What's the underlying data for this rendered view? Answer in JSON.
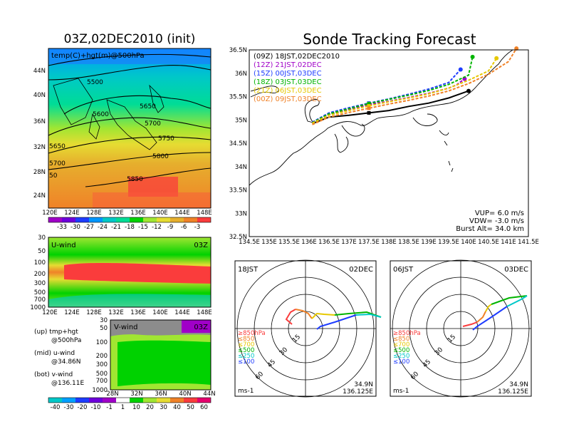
{
  "left": {
    "title": "03Z,02DEC2010 (init)",
    "map_label": "temp(C)+hgt(m)@500hPa",
    "lat_ticks": [
      "44N",
      "40N",
      "36N",
      "32N",
      "28N",
      "24N"
    ],
    "lon_ticks": [
      "120E",
      "124E",
      "128E",
      "132E",
      "136E",
      "140E",
      "144E",
      "148E"
    ],
    "contour_labels": [
      "5500",
      "5600",
      "5650",
      "5700",
      "5750",
      "5800",
      "5850",
      "5700",
      "5650",
      "5700",
      "50"
    ],
    "colorbar_labels": [
      "-33",
      "-30",
      "-27",
      "-24",
      "-21",
      "-18",
      "-15",
      "-12",
      "-9",
      "-6",
      "-3"
    ],
    "colorbar_colors": [
      "#a000c8",
      "#6e00dc",
      "#1e3cff",
      "#0096ff",
      "#00c8c8",
      "#00dc96",
      "#00d200",
      "#a0e632",
      "#e6dc32",
      "#e6af2d",
      "#f08228",
      "#fa3c3c"
    ]
  },
  "uwind": {
    "label": "U-wind",
    "time": "03Z",
    "p_ticks": [
      "30",
      "50",
      "100",
      "200",
      "300",
      "500",
      "700",
      "1000"
    ],
    "lon_ticks": [
      "120E",
      "124E",
      "128E",
      "132E",
      "136E",
      "140E",
      "144E",
      "148E"
    ]
  },
  "vwind": {
    "label": "V-wind",
    "time": "03Z",
    "p_ticks": [
      "30",
      "50",
      "100",
      "200",
      "300",
      "500",
      "700",
      "1000"
    ],
    "lat_ticks": [
      "28N",
      "32N",
      "36N",
      "40N",
      "44N"
    ]
  },
  "legend": {
    "up": "(up) tmp+hgt",
    "up2": "@500hPa",
    "mid": "(mid) u-wind",
    "mid2": "@34.86N",
    "bot": "(bot) v-wind",
    "bot2": "@136.11E"
  },
  "wind_colorbar": {
    "labels": [
      "-40",
      "-30",
      "-20",
      "-10",
      "-1",
      "1",
      "10",
      "20",
      "30",
      "40",
      "50",
      "60"
    ],
    "colors": [
      "#00c8c8",
      "#00a0ff",
      "#1e3cff",
      "#6e00dc",
      "#a000c8",
      "#ffffff",
      "#00d200",
      "#a0e632",
      "#e6dc32",
      "#f08228",
      "#fa3c3c",
      "#e6006e"
    ]
  },
  "track": {
    "title": "Sonde Tracking Forecast",
    "runs": [
      {
        "label": "(09Z)  18JST,02DEC2010",
        "color": "#000000"
      },
      {
        "label": "(12Z)  21JST,02DEC",
        "color": "#a000c8"
      },
      {
        "label": "(15Z)  00JST,03DEC",
        "color": "#1e3cff"
      },
      {
        "label": "(18Z)  03JST,03DEC",
        "color": "#00b400"
      },
      {
        "label": "(21Z)  06JST,03DEC",
        "color": "#e6c800"
      },
      {
        "label": "(00Z)  09JST,03DEC",
        "color": "#f08228"
      }
    ],
    "lat_ticks": [
      "36.5N",
      "36N",
      "35.5N",
      "35N",
      "34.5N",
      "34N",
      "33.5N",
      "33N",
      "32.5N"
    ],
    "lon_ticks": [
      "134.5E",
      "135E",
      "135.5E",
      "136E",
      "136.5E",
      "137E",
      "137.5E",
      "138E",
      "138.5E",
      "139E",
      "139.5E",
      "140E",
      "140.5E",
      "141E",
      "141.5E"
    ],
    "params": [
      "VUP=  6.0  m/s",
      "VDW=  -3.0  m/s",
      "Burst Alt=  34.0  km"
    ]
  },
  "hodo1": {
    "time": "18JST",
    "date": "02DEC",
    "unit": "ms-1",
    "lat": "34.9N",
    "lon": "136.125E",
    "rings": [
      "15",
      "30",
      "45",
      "60"
    ]
  },
  "hodo2": {
    "time": "06JST",
    "date": "03DEC",
    "unit": "ms-1",
    "lat": "34.9N",
    "lon": "136.125E",
    "rings": [
      "15",
      "30",
      "45",
      "60"
    ]
  },
  "hodo_legend": [
    {
      "label": "≥850hPa",
      "color": "#fa3c3c"
    },
    {
      "label": "≤850",
      "color": "#f08228"
    },
    {
      "label": "≤700",
      "color": "#e6c800"
    },
    {
      "label": "≤500",
      "color": "#00b400"
    },
    {
      "label": "≤250",
      "color": "#00c8c8"
    },
    {
      "label": "≤100",
      "color": "#1e3cff"
    }
  ],
  "chart_data": [
    {
      "type": "heatmap",
      "title": "03Z,02DEC2010 (init)",
      "annotation": "temp(C)+hgt(m)@500hPa",
      "xlim": [
        120,
        149
      ],
      "ylim": [
        23,
        47
      ],
      "contour_levels": [
        5500,
        5600,
        5650,
        5700,
        5750,
        5800,
        5850
      ]
    },
    {
      "type": "heatmap",
      "annotation": "U-wind",
      "xlim": [
        120,
        149
      ],
      "ylim": [
        1000,
        30
      ]
    },
    {
      "type": "heatmap",
      "annotation": "V-wind",
      "xlim": [
        28,
        44
      ],
      "ylim": [
        1000,
        30
      ]
    },
    {
      "type": "line",
      "title": "Sonde Tracking Forecast",
      "xlim": [
        134.5,
        141.5
      ],
      "ylim": [
        32.5,
        36.5
      ],
      "series": [
        {
          "name": "(09Z)  18JST,02DEC2010",
          "x": [
            136.08,
            136.5,
            137.0,
            137.5,
            138.0,
            138.5,
            139.0,
            139.5,
            140.0
          ],
          "y": [
            34.92,
            35.06,
            35.1,
            35.15,
            35.2,
            35.29,
            35.36,
            35.47,
            35.62
          ]
        },
        {
          "name": "(12Z)  21JST,02DEC",
          "x": [
            136.08,
            136.5,
            137.0,
            137.5,
            138.0,
            138.5,
            139.0,
            139.5,
            139.7,
            139.9
          ],
          "y": [
            34.95,
            35.12,
            35.22,
            35.33,
            35.4,
            35.48,
            35.57,
            35.68,
            35.75,
            35.88
          ]
        },
        {
          "name": "(15Z)  00JST,03DEC",
          "x": [
            136.08,
            136.5,
            137.0,
            137.5,
            138.0,
            138.5,
            139.0,
            139.5,
            139.8
          ],
          "y": [
            34.95,
            35.15,
            35.26,
            35.36,
            35.45,
            35.55,
            35.66,
            35.8,
            36.08
          ]
        },
        {
          "name": "(18Z)  03JST,03DEC",
          "x": [
            136.08,
            136.5,
            137.0,
            137.5,
            138.0,
            138.5,
            139.0,
            139.5,
            140.0,
            140.1
          ],
          "y": [
            34.94,
            35.13,
            35.24,
            35.35,
            35.44,
            35.53,
            35.63,
            35.76,
            35.96,
            36.35
          ]
        },
        {
          "name": "(21Z)  06JST,03DEC",
          "x": [
            136.08,
            136.5,
            137.0,
            137.5,
            138.0,
            138.5,
            139.0,
            139.5,
            140.0,
            140.5,
            140.7
          ],
          "y": [
            34.93,
            35.1,
            35.2,
            35.3,
            35.39,
            35.47,
            35.56,
            35.68,
            35.85,
            36.05,
            36.32
          ]
        },
        {
          "name": "(00Z)  09JST,03DEC",
          "x": [
            136.08,
            136.5,
            137.0,
            137.5,
            138.0,
            138.5,
            139.0,
            139.5,
            140.0,
            140.5,
            141.0,
            141.2
          ],
          "y": [
            34.9,
            35.06,
            35.16,
            35.25,
            35.34,
            35.42,
            35.51,
            35.62,
            35.78,
            35.98,
            36.25,
            36.53
          ]
        }
      ]
    }
  ]
}
